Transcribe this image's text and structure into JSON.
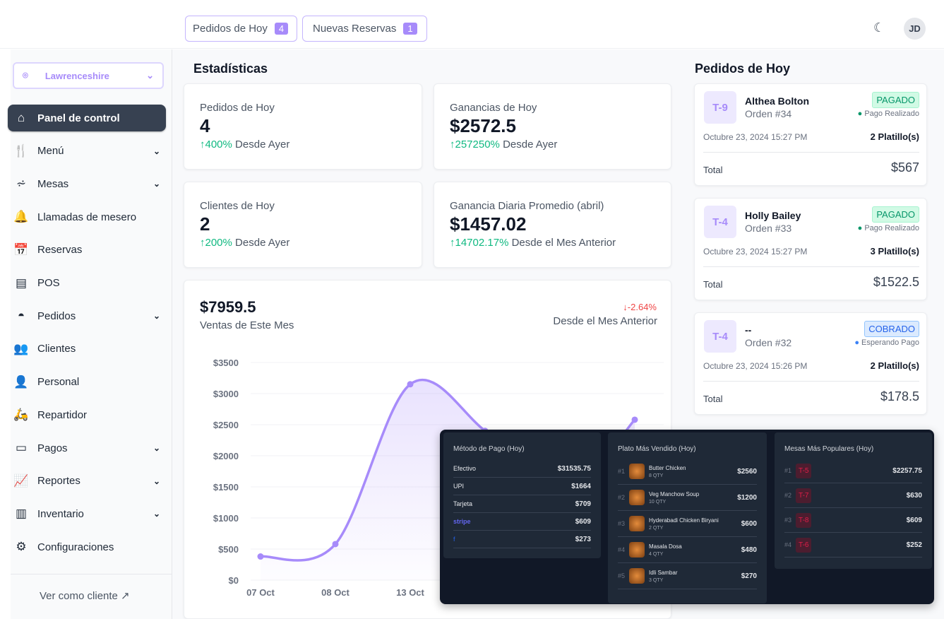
{
  "header": {
    "orders_today": {
      "label": "Pedidos de Hoy",
      "count": "4"
    },
    "new_reservations": {
      "label": "Nuevas Reservas",
      "count": "1"
    },
    "avatar": "JD"
  },
  "sidebar": {
    "location": "Lawrenceshire",
    "items": [
      {
        "label": "Panel de control",
        "icon": "home",
        "active": true
      },
      {
        "label": "Menú",
        "icon": "menu",
        "chevron": true
      },
      {
        "label": "Mesas",
        "icon": "table",
        "chevron": true
      },
      {
        "label": "Llamadas de mesero",
        "icon": "bell"
      },
      {
        "label": "Reservas",
        "icon": "calendar"
      },
      {
        "label": "POS",
        "icon": "pos"
      },
      {
        "label": "Pedidos",
        "icon": "cloche",
        "chevron": true
      },
      {
        "label": "Clientes",
        "icon": "users"
      },
      {
        "label": "Personal",
        "icon": "user"
      },
      {
        "label": "Repartidor",
        "icon": "scooter"
      },
      {
        "label": "Pagos",
        "icon": "wallet",
        "chevron": true
      },
      {
        "label": "Reportes",
        "icon": "chart",
        "chevron": true
      },
      {
        "label": "Inventario",
        "icon": "box",
        "chevron": true
      },
      {
        "label": "Configuraciones",
        "icon": "gear"
      }
    ],
    "view_as_customer": "Ver como cliente"
  },
  "stats": {
    "title": "Estadísticas",
    "cards": [
      {
        "label": "Pedidos de Hoy",
        "value": "4",
        "change": "400%",
        "since": "Desde Ayer"
      },
      {
        "label": "Ganancias de Hoy",
        "value": "$2572.5",
        "change": "257250%",
        "since": "Desde Ayer"
      },
      {
        "label": "Clientes de Hoy",
        "value": "2",
        "change": "200%",
        "since": "Desde Ayer"
      },
      {
        "label": "Ganancia Diaria Promedio (abril)",
        "value": "$1457.02",
        "change": "14702.17%",
        "since": "Desde el Mes Anterior"
      }
    ]
  },
  "sales": {
    "value": "$7959.5",
    "label": "Ventas de Este Mes",
    "change": "-2.64%",
    "since": "Desde el Mes Anterior"
  },
  "chart_data": {
    "type": "line",
    "categories": [
      "07 Oct",
      "08 Oct",
      "13 Oct",
      "",
      "",
      ""
    ],
    "values": [
      380,
      580,
      3150,
      2400,
      1300,
      2580
    ],
    "yticks": [
      "$0",
      "$500",
      "$1000",
      "$1500",
      "$2000",
      "$2500",
      "$3000",
      "$3500"
    ],
    "ylim": [
      0,
      3500
    ],
    "color": "#a78bfa"
  },
  "orders": {
    "title": "Pedidos de Hoy",
    "items": [
      {
        "table": "T-9",
        "name": "Althea Bolton",
        "order": "Orden #34",
        "status": "PAGADO",
        "payment": "Pago Realizado",
        "date": "Octubre 23, 2024 15:27 PM",
        "dishes": "2 Platillo(s)",
        "total_label": "Total",
        "total": "$567",
        "kind": "paid"
      },
      {
        "table": "T-4",
        "name": "Holly Bailey",
        "order": "Orden #33",
        "status": "PAGADO",
        "payment": "Pago Realizado",
        "date": "Octubre 23, 2024 15:27 PM",
        "dishes": "3 Platillo(s)",
        "total_label": "Total",
        "total": "$1522.5",
        "kind": "paid"
      },
      {
        "table": "T-4",
        "name": "--",
        "order": "Orden #32",
        "status": "COBRADO",
        "payment": "Esperando Pago",
        "date": "Octubre 23, 2024 15:26 PM",
        "dishes": "2 Platillo(s)",
        "total_label": "Total",
        "total": "$178.5",
        "kind": "billed"
      }
    ]
  },
  "payment_methods": {
    "title": "Método de Pago (Hoy)",
    "items": [
      {
        "name": "Efectivo",
        "amount": "$31535.75"
      },
      {
        "name": "UPI",
        "amount": "$1664"
      },
      {
        "name": "Tarjeta",
        "amount": "$709"
      },
      {
        "name": "stripe",
        "amount": "$609"
      },
      {
        "name": "f",
        "amount": "$273"
      }
    ]
  },
  "top_dishes": {
    "title": "Plato Más Vendido (Hoy)",
    "items": [
      {
        "rank": "#1",
        "name": "Butter Chicken",
        "qty": "8 QTY",
        "amount": "$2560"
      },
      {
        "rank": "#2",
        "name": "Veg Manchow Soup",
        "qty": "10 QTY",
        "amount": "$1200"
      },
      {
        "rank": "#3",
        "name": "Hyderabadi Chicken Biryani",
        "qty": "2 QTY",
        "amount": "$600"
      },
      {
        "rank": "#4",
        "name": "Masala Dosa",
        "qty": "4 QTY",
        "amount": "$480"
      },
      {
        "rank": "#5",
        "name": "Idli Sambar",
        "qty": "3 QTY",
        "amount": "$270"
      }
    ]
  },
  "top_tables": {
    "title": "Mesas Más Populares (Hoy)",
    "items": [
      {
        "rank": "#1",
        "table": "T-5",
        "amount": "$2257.75"
      },
      {
        "rank": "#2",
        "table": "T-7",
        "amount": "$630"
      },
      {
        "rank": "#3",
        "table": "T-8",
        "amount": "$609"
      },
      {
        "rank": "#4",
        "table": "T-6",
        "amount": "$252"
      }
    ]
  }
}
